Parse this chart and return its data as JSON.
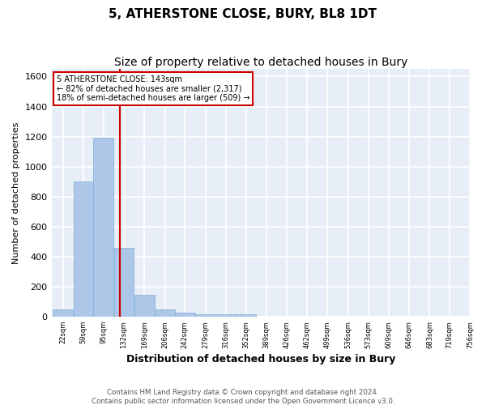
{
  "title": "5, ATHERSTONE CLOSE, BURY, BL8 1DT",
  "subtitle": "Size of property relative to detached houses in Bury",
  "xlabel": "Distribution of detached houses by size in Bury",
  "ylabel": "Number of detached properties",
  "bar_color": "#aec6e8",
  "bar_edge_color": "#7aafd4",
  "background_color": "#e8eef8",
  "grid_color": "#ffffff",
  "vline_color": "#cc0000",
  "vline_x": 143,
  "annotation_line1": "5 ATHERSTONE CLOSE: 143sqm",
  "annotation_line2": "← 82% of detached houses are smaller (2,317)",
  "annotation_line3": "18% of semi-detached houses are larger (509) →",
  "footnote1": "Contains HM Land Registry data © Crown copyright and database right 2024.",
  "footnote2": "Contains public sector information licensed under the Open Government Licence v3.0.",
  "bin_left_edges": [
    22,
    59,
    95,
    132,
    169,
    206,
    242,
    279,
    316,
    352,
    389,
    426,
    462,
    499,
    536,
    573,
    609,
    646,
    683,
    719
  ],
  "bin_labels": [
    "22sqm",
    "59sqm",
    "95sqm",
    "132sqm",
    "169sqm",
    "206sqm",
    "242sqm",
    "279sqm",
    "316sqm",
    "352sqm",
    "389sqm",
    "426sqm",
    "462sqm",
    "499sqm",
    "536sqm",
    "573sqm",
    "609sqm",
    "646sqm",
    "683sqm",
    "719sqm",
    "756sqm"
  ],
  "bar_heights": [
    50,
    900,
    1190,
    460,
    148,
    50,
    30,
    18,
    18,
    18,
    0,
    0,
    0,
    0,
    0,
    0,
    0,
    0,
    0,
    0
  ],
  "ylim": [
    0,
    1650
  ],
  "yticks": [
    0,
    200,
    400,
    600,
    800,
    1000,
    1200,
    1400,
    1600
  ]
}
